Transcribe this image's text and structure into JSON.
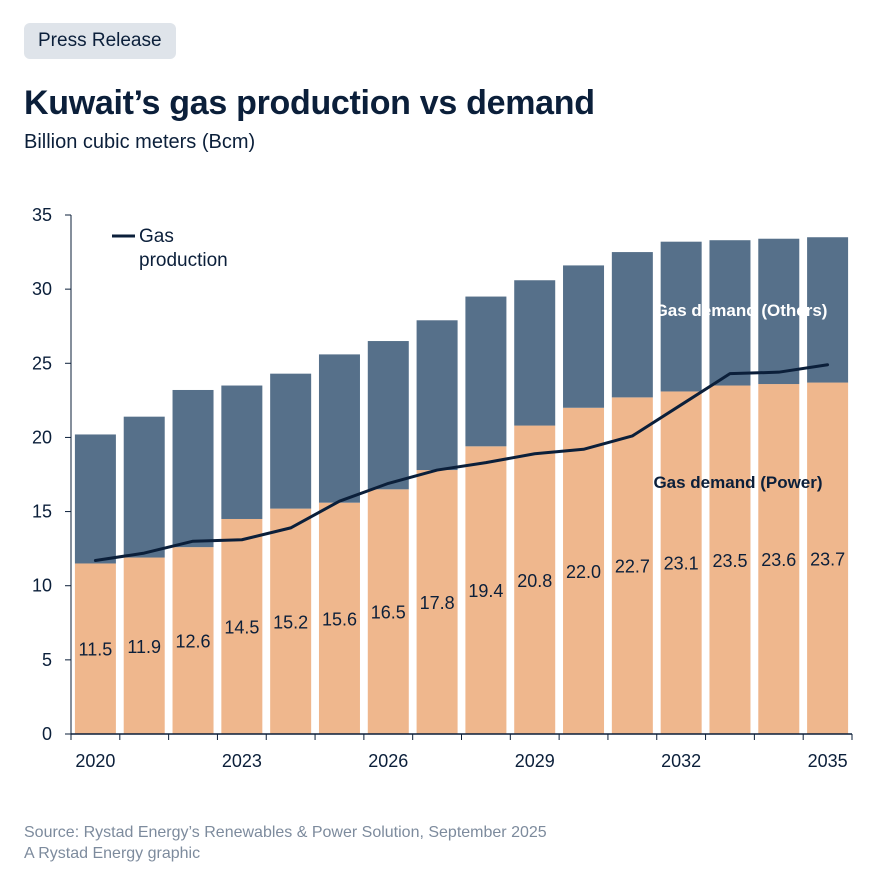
{
  "badge": "Press Release",
  "title": "Kuwait’s gas production vs demand",
  "subtitle": "Billion cubic meters (Bcm)",
  "source": {
    "line1": "Source: Rystad Energy’s Renewables & Power Solution, September 2025",
    "line2": "A Rystad Energy graphic"
  },
  "colors": {
    "power": "#efb78d",
    "others": "#56708a",
    "line": "#0b1f3a",
    "text": "#0b1f3a",
    "muted": "#7d8b9d"
  },
  "chart_data": {
    "type": "bar",
    "stacked": true,
    "categories": [
      "2020",
      "2021",
      "2022",
      "2023",
      "2024",
      "2025",
      "2026",
      "2027",
      "2028",
      "2029",
      "2030",
      "2031",
      "2032",
      "2033",
      "2034",
      "2035"
    ],
    "x_tick_labels": [
      "2020",
      "2023",
      "2026",
      "2029",
      "2032",
      "2035"
    ],
    "y_ticks": [
      0,
      5,
      10,
      15,
      20,
      25,
      30,
      35
    ],
    "ylim": [
      0,
      35
    ],
    "series": [
      {
        "name": "Gas demand (Power)",
        "type": "bar",
        "values": [
          11.5,
          11.9,
          12.6,
          14.5,
          15.2,
          15.6,
          16.5,
          17.8,
          19.4,
          20.8,
          22.0,
          22.7,
          23.1,
          23.5,
          23.6,
          23.7
        ],
        "value_labels": [
          "11.5",
          "11.9",
          "12.6",
          "14.5",
          "15.2",
          "15.6",
          "16.5",
          "17.8",
          "19.4",
          "20.8",
          "22.0",
          "22.7",
          "23.1",
          "23.5",
          "23.6",
          "23.7"
        ]
      },
      {
        "name": "Gas demand (Others)",
        "type": "bar",
        "values": [
          8.7,
          9.5,
          10.6,
          9.0,
          9.1,
          10.0,
          10.0,
          10.1,
          10.1,
          9.8,
          9.6,
          9.8,
          10.1,
          9.8,
          9.8,
          9.8
        ]
      },
      {
        "name": "Gas production",
        "type": "line",
        "values": [
          11.7,
          12.2,
          13.0,
          13.1,
          13.9,
          15.7,
          16.9,
          17.8,
          18.3,
          18.9,
          19.2,
          20.1,
          22.2,
          24.3,
          24.4,
          24.9
        ]
      }
    ],
    "legend": {
      "label": "Gas production",
      "position": "top-left"
    }
  }
}
